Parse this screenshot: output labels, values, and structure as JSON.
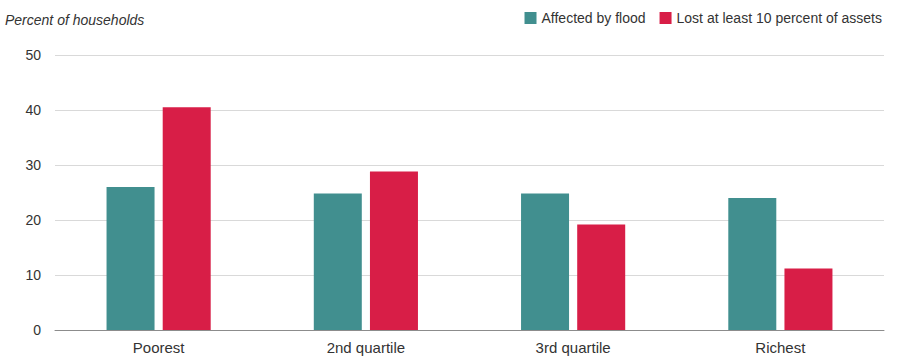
{
  "chart_data": {
    "type": "bar",
    "y_label": "Percent of households",
    "categories": [
      "Poorest",
      "2nd quartile",
      "3rd quartile",
      "Richest"
    ],
    "series": [
      {
        "name": "Affected by flood",
        "color": "#418f8f",
        "values": [
          26,
          24.8,
          24.8,
          24
        ]
      },
      {
        "name": "Lost at least 10 percent of assets",
        "color": "#d81e47",
        "values": [
          40.5,
          28.8,
          19.2,
          11.2
        ]
      }
    ],
    "ylim": [
      0,
      50
    ],
    "yticks": [
      0,
      10,
      20,
      30,
      40,
      50
    ],
    "grid": true,
    "legend": "top-right"
  }
}
